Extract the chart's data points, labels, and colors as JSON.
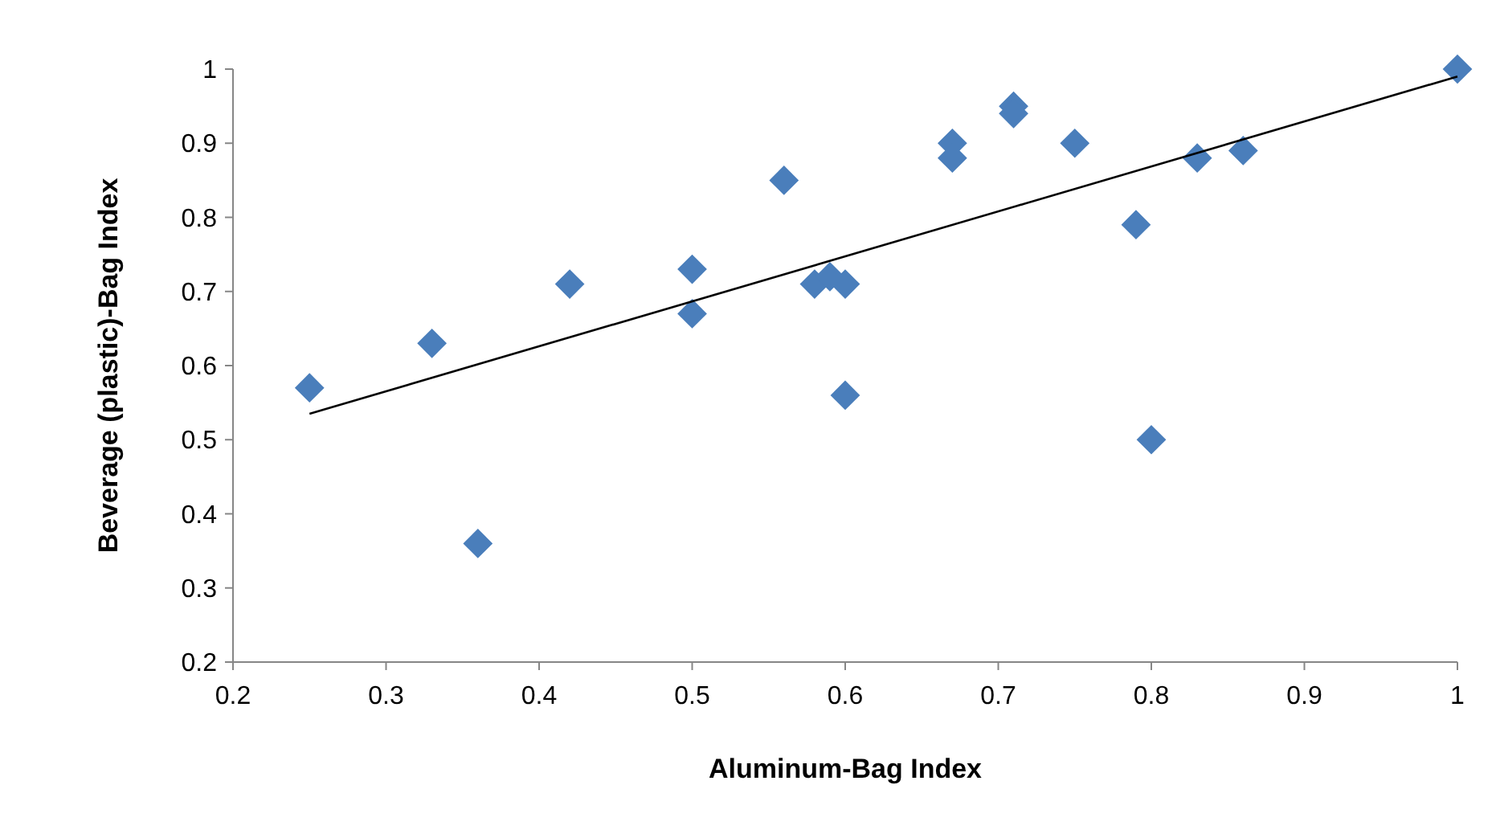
{
  "chart_data": {
    "type": "scatter",
    "xlabel": "Aluminum-Bag Index",
    "ylabel": "Beverage (plastic)-Bag Index",
    "xlim": [
      0.2,
      1
    ],
    "ylim": [
      0.2,
      1
    ],
    "xticks": [
      0.2,
      0.3,
      0.4,
      0.5,
      0.6,
      0.7,
      0.8,
      0.9,
      1
    ],
    "yticks": [
      0.2,
      0.3,
      0.4,
      0.5,
      0.6,
      0.7,
      0.8,
      0.9,
      1
    ],
    "grid": false,
    "marker": "diamond",
    "series": [
      {
        "color": "#4a7ebb",
        "x": [
          0.25,
          0.33,
          0.36,
          0.42,
          0.5,
          0.5,
          0.56,
          0.58,
          0.59,
          0.6,
          0.6,
          0.67,
          0.67,
          0.71,
          0.71,
          0.75,
          0.79,
          0.8,
          0.83,
          0.86,
          1.0
        ],
        "values": [
          0.57,
          0.63,
          0.36,
          0.71,
          0.73,
          0.67,
          0.85,
          0.71,
          0.72,
          0.71,
          0.56,
          0.9,
          0.88,
          0.95,
          0.94,
          0.9,
          0.79,
          0.5,
          0.88,
          0.89,
          1.0
        ]
      },
      {
        "type": "line",
        "color": "#000000",
        "x": [
          0.25,
          1.0
        ],
        "values": [
          0.535,
          0.99
        ],
        "marker": "none"
      }
    ]
  }
}
